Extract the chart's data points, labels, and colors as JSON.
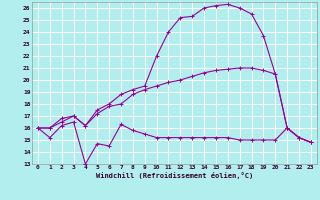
{
  "xlabel": "Windchill (Refroidissement éolien,°C)",
  "bg_color": "#b2eeee",
  "grid_color": "#ffffff",
  "line_color": "#990099",
  "ylim": [
    13,
    26.5
  ],
  "xlim": [
    -0.5,
    23.5
  ],
  "yticks": [
    13,
    14,
    15,
    16,
    17,
    18,
    19,
    20,
    21,
    22,
    23,
    24,
    25,
    26
  ],
  "xticks": [
    0,
    1,
    2,
    3,
    4,
    5,
    6,
    7,
    8,
    9,
    10,
    11,
    12,
    13,
    14,
    15,
    16,
    17,
    18,
    19,
    20,
    21,
    22,
    23
  ],
  "line1_x": [
    0,
    1,
    2,
    3,
    4,
    5,
    6,
    7,
    8,
    9,
    10,
    11,
    12,
    13,
    14,
    15,
    16,
    17,
    18,
    19,
    20,
    21,
    22,
    23
  ],
  "line1_y": [
    16.0,
    15.2,
    16.2,
    16.5,
    13.0,
    14.7,
    14.5,
    16.3,
    15.8,
    15.5,
    15.2,
    15.2,
    15.2,
    15.2,
    15.2,
    15.2,
    15.2,
    15.0,
    15.0,
    15.0,
    15.0,
    16.0,
    15.2,
    14.8
  ],
  "line2_x": [
    0,
    1,
    2,
    3,
    4,
    5,
    6,
    7,
    8,
    9,
    10,
    11,
    12,
    13,
    14,
    15,
    16,
    17,
    18,
    19,
    20,
    21,
    22,
    23
  ],
  "line2_y": [
    16.0,
    16.0,
    16.5,
    17.0,
    16.2,
    17.2,
    17.8,
    18.0,
    18.8,
    19.2,
    19.5,
    19.8,
    20.0,
    20.3,
    20.6,
    20.8,
    20.9,
    21.0,
    21.0,
    20.8,
    20.5,
    16.0,
    15.2,
    14.8
  ],
  "line3_x": [
    0,
    1,
    2,
    3,
    4,
    5,
    6,
    7,
    8,
    9,
    10,
    11,
    12,
    13,
    14,
    15,
    16,
    17,
    18,
    19,
    20,
    21,
    22,
    23
  ],
  "line3_y": [
    16.0,
    16.0,
    16.8,
    17.0,
    16.2,
    17.5,
    18.0,
    18.8,
    19.2,
    19.5,
    22.0,
    24.0,
    25.2,
    25.3,
    26.0,
    26.2,
    26.3,
    26.0,
    25.5,
    23.7,
    20.5,
    16.0,
    15.2,
    14.8
  ]
}
